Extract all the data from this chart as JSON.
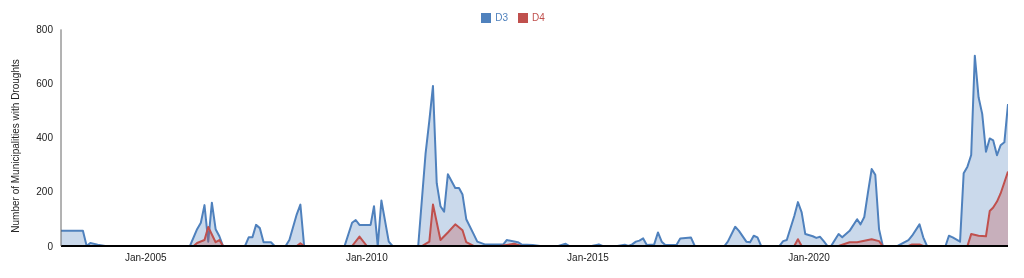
{
  "chart_data": {
    "type": "area",
    "ylabel": "Number of Municipalities with Droughts",
    "legend": "top",
    "grid": false,
    "xlim": [
      "2003-02",
      "2024-07"
    ],
    "xticks": [
      {
        "value": "2005-01",
        "label": "Jan-2005"
      },
      {
        "value": "2010-01",
        "label": "Jan-2010"
      },
      {
        "value": "2015-01",
        "label": "Jan-2015"
      },
      {
        "value": "2020-01",
        "label": "Jan-2020"
      }
    ],
    "ylim": [
      0,
      800
    ],
    "yticks": [
      0,
      200,
      400,
      600,
      800
    ],
    "series": [
      {
        "name": "D3",
        "color": "#4f81bd",
        "x": [
          "2003-02",
          "2003-08",
          "2003-09",
          "2003-10",
          "2003-12",
          "2004-02",
          "2006-01",
          "2006-03",
          "2006-04",
          "2006-05",
          "2006-06",
          "2006-07",
          "2006-08",
          "2006-09",
          "2006-10",
          "2007-04",
          "2007-05",
          "2007-06",
          "2007-07",
          "2007-08",
          "2007-09",
          "2007-11",
          "2007-12",
          "2008-03",
          "2008-04",
          "2008-06",
          "2008-07",
          "2008-08",
          "2009-07",
          "2009-09",
          "2009-10",
          "2009-11",
          "2010-02",
          "2010-03",
          "2010-04",
          "2010-05",
          "2010-07",
          "2010-08",
          "2011-03",
          "2011-05",
          "2011-06",
          "2011-07",
          "2011-08",
          "2011-09",
          "2011-10",
          "2011-11",
          "2012-01",
          "2012-02",
          "2012-03",
          "2012-04",
          "2012-06",
          "2012-07",
          "2012-09",
          "2013-02",
          "2013-03",
          "2013-06",
          "2013-07",
          "2013-10",
          "2013-12",
          "2014-05",
          "2014-07",
          "2014-08",
          "2015-02",
          "2015-04",
          "2015-05",
          "2015-09",
          "2015-11",
          "2015-12",
          "2016-01",
          "2016-02",
          "2016-03",
          "2016-04",
          "2016-05",
          "2016-07",
          "2016-08",
          "2016-09",
          "2016-10",
          "2017-01",
          "2017-02",
          "2017-05",
          "2017-06",
          "2018-02",
          "2018-03",
          "2018-05",
          "2018-06",
          "2018-08",
          "2018-09",
          "2018-10",
          "2018-11",
          "2018-12",
          "2019-05",
          "2019-06",
          "2019-07",
          "2019-09",
          "2019-10",
          "2019-11",
          "2019-12",
          "2020-02",
          "2020-03",
          "2020-04",
          "2020-05",
          "2020-06",
          "2020-07",
          "2020-09",
          "2020-10",
          "2020-12",
          "2021-02",
          "2021-03",
          "2021-04",
          "2021-05",
          "2021-06",
          "2021-07",
          "2021-08",
          "2021-09",
          "2022-01",
          "2022-04",
          "2022-05",
          "2022-07",
          "2022-08",
          "2022-09",
          "2023-02",
          "2023-03",
          "2023-04",
          "2023-06",
          "2023-07",
          "2023-08",
          "2023-09",
          "2023-10",
          "2023-11",
          "2023-12",
          "2024-01",
          "2024-02",
          "2024-03",
          "2024-04",
          "2024-05",
          "2024-06",
          "2024-07"
        ],
        "values": [
          56,
          56,
          0,
          11,
          5,
          0,
          0,
          62,
          86,
          151,
          16,
          160,
          62,
          36,
          0,
          0,
          32,
          32,
          78,
          66,
          14,
          14,
          0,
          0,
          22,
          117,
          153,
          0,
          0,
          86,
          96,
          78,
          78,
          147,
          0,
          168,
          16,
          0,
          0,
          342,
          463,
          591,
          232,
          147,
          127,
          265,
          214,
          214,
          190,
          99,
          44,
          16,
          6,
          6,
          22,
          14,
          6,
          4,
          0,
          0,
          8,
          0,
          0,
          6,
          0,
          0,
          5,
          0,
          6,
          16,
          20,
          28,
          4,
          6,
          50,
          16,
          4,
          4,
          28,
          31,
          0,
          0,
          16,
          71,
          56,
          16,
          14,
          38,
          32,
          0,
          0,
          18,
          22,
          111,
          162,
          124,
          44,
          36,
          30,
          34,
          18,
          0,
          0,
          44,
          32,
          56,
          99,
          80,
          107,
          196,
          284,
          263,
          62,
          0,
          0,
          22,
          38,
          80,
          32,
          0,
          0,
          38,
          32,
          16,
          269,
          293,
          336,
          703,
          549,
          488,
          348,
          397,
          390,
          335,
          372,
          383,
          524
        ]
      },
      {
        "name": "D4",
        "color": "#c0504d",
        "x": [
          "2003-02",
          "2006-02",
          "2006-03",
          "2006-05",
          "2006-06",
          "2006-08",
          "2006-09",
          "2006-10",
          "2008-06",
          "2008-07",
          "2008-08",
          "2009-09",
          "2009-11",
          "2010-01",
          "2011-04",
          "2011-06",
          "2011-07",
          "2011-09",
          "2011-11",
          "2012-01",
          "2012-03",
          "2012-04",
          "2012-06",
          "2013-01",
          "2013-05",
          "2013-07",
          "2019-09",
          "2019-10",
          "2019-11",
          "2020-09",
          "2020-12",
          "2021-02",
          "2021-06",
          "2021-08",
          "2021-09",
          "2022-04",
          "2022-05",
          "2022-07",
          "2022-08",
          "2023-08",
          "2023-09",
          "2023-11",
          "2024-01",
          "2024-02",
          "2024-03",
          "2024-04",
          "2024-05",
          "2024-07"
        ],
        "values": [
          0,
          0,
          11,
          22,
          70,
          14,
          22,
          0,
          0,
          10,
          0,
          0,
          35,
          0,
          0,
          16,
          153,
          22,
          50,
          80,
          58,
          14,
          0,
          0,
          8,
          0,
          0,
          25,
          0,
          0,
          14,
          14,
          25,
          18,
          0,
          0,
          6,
          6,
          0,
          0,
          44,
          38,
          36,
          129,
          142,
          164,
          194,
          275
        ]
      }
    ]
  }
}
